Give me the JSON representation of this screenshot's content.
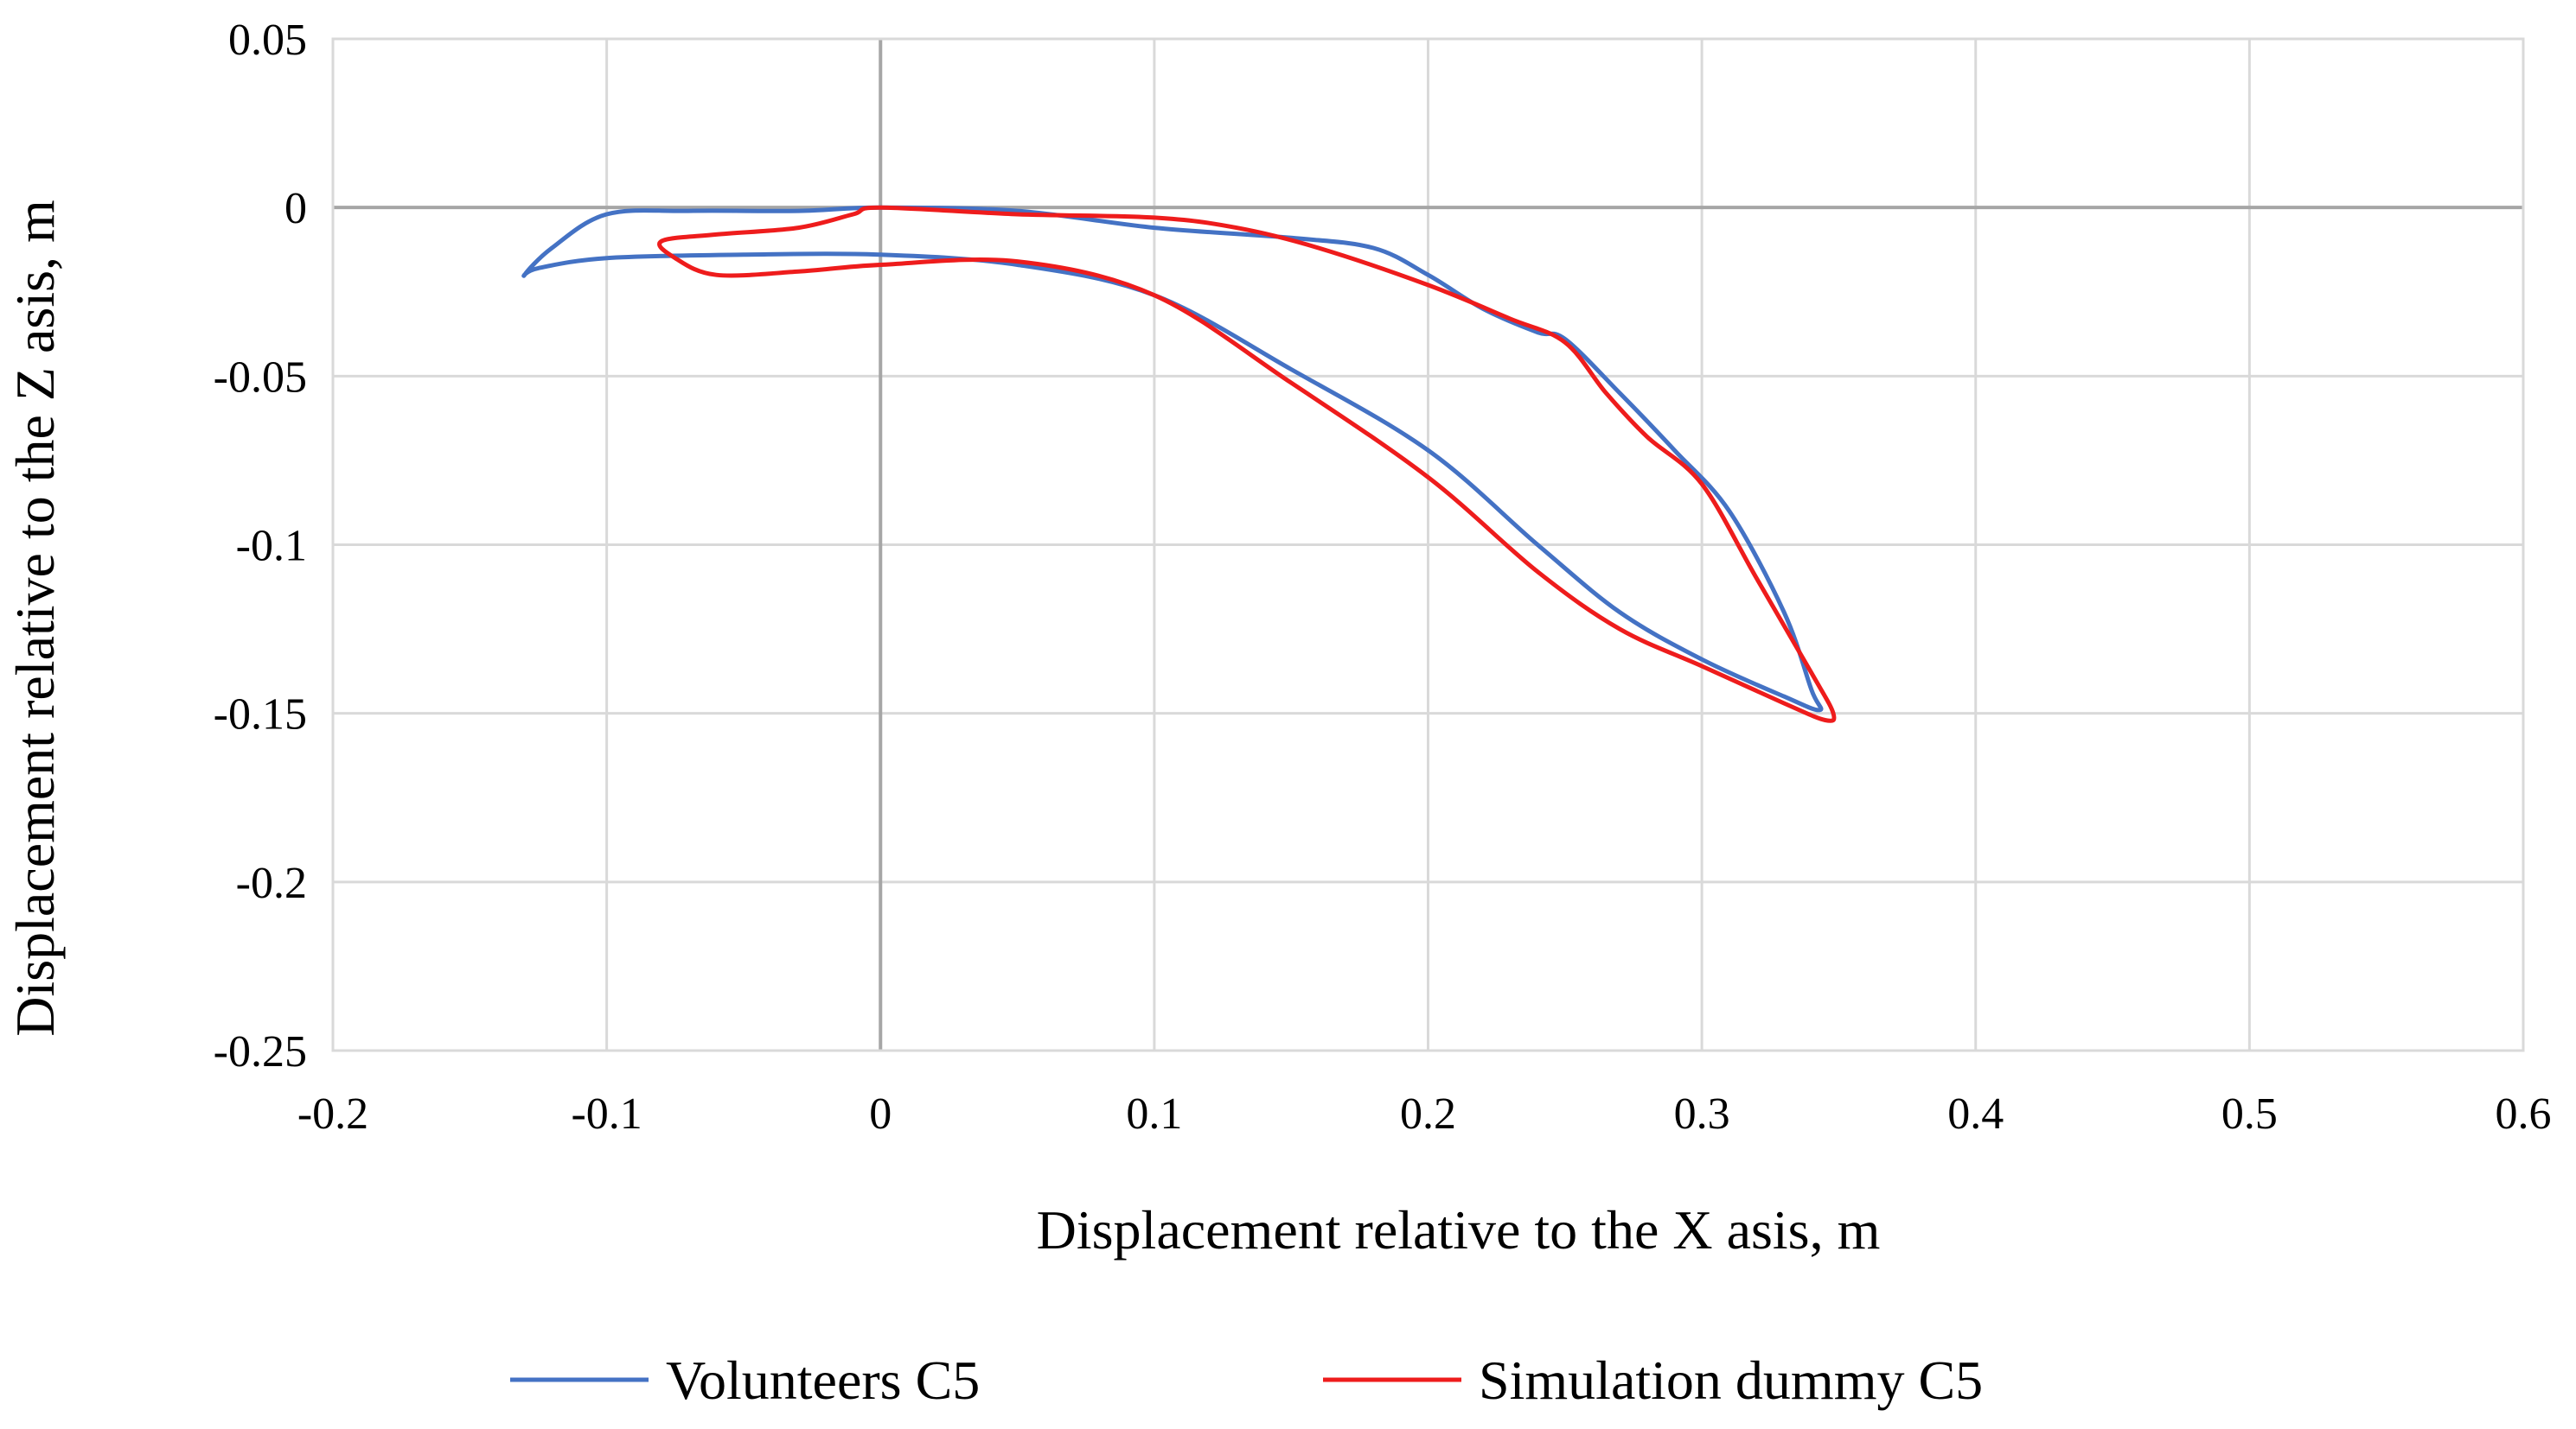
{
  "chart_data": {
    "type": "line",
    "title": "",
    "xlabel": "Displacement relative to the X asis, m",
    "ylabel": "Displacement relative to the Z asis, m",
    "xlim": [
      -0.2,
      0.6
    ],
    "ylim": [
      -0.25,
      0.05
    ],
    "xticks": [
      -0.2,
      -0.1,
      0,
      0.1,
      0.2,
      0.3,
      0.4,
      0.5,
      0.6
    ],
    "xtick_labels": [
      "-0.2",
      "-0.1",
      "0",
      "0.1",
      "0.2",
      "0.3",
      "0.4",
      "0.5",
      "0.6"
    ],
    "yticks": [
      0.05,
      0,
      -0.05,
      -0.1,
      -0.15,
      -0.2,
      -0.25
    ],
    "ytick_labels": [
      "0.05",
      "0",
      "-0.05",
      "-0.1",
      "-0.15",
      "-0.2",
      "-0.25"
    ],
    "grid": true,
    "legend_position": "bottom",
    "series": [
      {
        "name": "Volunteers C5",
        "color": "#4472C4",
        "x": [
          0,
          0.05,
          0.1,
          0.15,
          0.18,
          0.2,
          0.22,
          0.24,
          0.25,
          0.27,
          0.29,
          0.31,
          0.33,
          0.34,
          0.343,
          0.33,
          0.3,
          0.27,
          0.24,
          0.2,
          0.15,
          0.1,
          0.05,
          0,
          -0.05,
          -0.1,
          -0.125,
          -0.13,
          -0.12,
          -0.1,
          -0.07,
          -0.03,
          0
        ],
        "y": [
          0,
          -0.001,
          -0.006,
          -0.009,
          -0.012,
          -0.02,
          -0.03,
          -0.037,
          -0.039,
          -0.055,
          -0.072,
          -0.09,
          -0.12,
          -0.143,
          -0.149,
          -0.145,
          -0.134,
          -0.12,
          -0.1,
          -0.072,
          -0.048,
          -0.026,
          -0.017,
          -0.014,
          -0.014,
          -0.015,
          -0.018,
          -0.02,
          -0.012,
          -0.002,
          -0.001,
          -0.001,
          0
        ]
      },
      {
        "name": "Simulation dummy C5",
        "color": "#EE1C1C",
        "x": [
          0,
          0.05,
          0.1,
          0.13,
          0.16,
          0.2,
          0.23,
          0.25,
          0.265,
          0.28,
          0.3,
          0.32,
          0.34,
          0.348,
          0.345,
          0.33,
          0.3,
          0.27,
          0.24,
          0.2,
          0.15,
          0.1,
          0.05,
          0,
          -0.03,
          -0.06,
          -0.075,
          -0.08,
          -0.06,
          -0.03,
          -0.01,
          0
        ],
        "y": [
          0,
          -0.002,
          -0.003,
          -0.006,
          -0.012,
          -0.023,
          -0.033,
          -0.04,
          -0.055,
          -0.068,
          -0.082,
          -0.11,
          -0.138,
          -0.15,
          -0.152,
          -0.147,
          -0.136,
          -0.125,
          -0.108,
          -0.08,
          -0.052,
          -0.026,
          -0.016,
          -0.017,
          -0.019,
          -0.02,
          -0.015,
          -0.01,
          -0.008,
          -0.006,
          -0.002,
          0
        ]
      }
    ]
  }
}
